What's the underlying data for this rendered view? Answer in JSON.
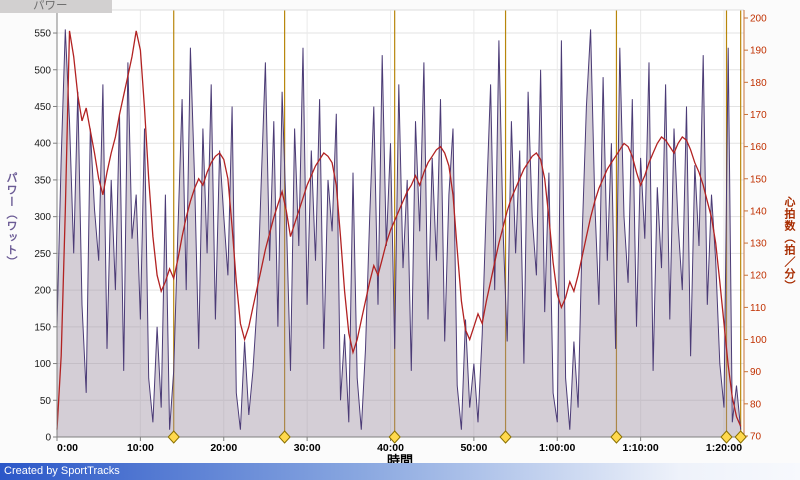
{
  "page": {
    "pane_title": "パワー",
    "credit": "Created by SportTracks"
  },
  "chart_data": {
    "type": "line",
    "title": "パワー",
    "legend_position": "none",
    "grid": true,
    "x_axis": {
      "label": "時間",
      "ticks": [
        "0:00",
        "10:00",
        "20:00",
        "30:00",
        "40:00",
        "50:00",
        "1:00:00",
        "1:10:00",
        "1:20:00"
      ],
      "minutes": [
        0,
        10,
        20,
        30,
        40,
        50,
        60,
        70,
        80
      ]
    },
    "y_left": {
      "label": "パワー（ワット）",
      "color": "#6b5b95",
      "tick_label_color": "#1a1a1a",
      "ticks": [
        0,
        50,
        100,
        150,
        200,
        250,
        300,
        350,
        400,
        450,
        500,
        550
      ],
      "range": [
        0,
        581
      ]
    },
    "y_right": {
      "label": "心拍数（拍／分）",
      "color": "#a82c00",
      "tick_label_color": "#c03000",
      "ticks": [
        70,
        80,
        90,
        100,
        110,
        120,
        130,
        140,
        150,
        160,
        170,
        180,
        190,
        200
      ],
      "range": [
        70,
        202
      ]
    },
    "t0_min": 0,
    "dt_min": 0.5,
    "markers": {
      "line_color": "#b8860b",
      "diamond_fill": "#ffd94d",
      "diamond_stroke": "#8a7000",
      "times_min": [
        14.0,
        27.3,
        40.5,
        53.8,
        67.1,
        80.3,
        82.0
      ]
    },
    "series": [
      {
        "name": "パワー",
        "axis": "left",
        "unit": "ワット",
        "style": "area",
        "color": "#4b3b76",
        "fill": "rgba(152,138,158,0.42)",
        "values": [
          150,
          380,
          555,
          430,
          250,
          470,
          180,
          60,
          420,
          310,
          240,
          480,
          120,
          350,
          200,
          440,
          90,
          510,
          270,
          330,
          160,
          420,
          80,
          20,
          150,
          40,
          330,
          10,
          90,
          280,
          460,
          200,
          530,
          350,
          120,
          420,
          250,
          480,
          160,
          390,
          300,
          220,
          450,
          60,
          10,
          130,
          30,
          90,
          180,
          350,
          510,
          240,
          430,
          150,
          470,
          300,
          90,
          420,
          260,
          530,
          180,
          390,
          240,
          460,
          120,
          350,
          280,
          440,
          50,
          140,
          20,
          360,
          80,
          10,
          120,
          300,
          450,
          180,
          520,
          260,
          400,
          120,
          480,
          230,
          350,
          90,
          430,
          280,
          510,
          160,
          380,
          240,
          460,
          130,
          330,
          420,
          70,
          10,
          160,
          40,
          100,
          20,
          140,
          320,
          480,
          200,
          540,
          280,
          130,
          430,
          250,
          390,
          100,
          470,
          300,
          220,
          500,
          170,
          360,
          60,
          20,
          540,
          80,
          10,
          130,
          40,
          280,
          450,
          555,
          320,
          180,
          490,
          240,
          400,
          120,
          530,
          300,
          210,
          460,
          150,
          380,
          270,
          510,
          90,
          340,
          230,
          480,
          160,
          420,
          290,
          200,
          450,
          110,
          370,
          260,
          520,
          180,
          330,
          240,
          100,
          40,
          530,
          20,
          70,
          10
        ]
      },
      {
        "name": "心拍数",
        "axis": "right",
        "unit": "拍／分",
        "style": "line",
        "color": "#b22222",
        "values": [
          72,
          95,
          140,
          196,
          188,
          176,
          168,
          172,
          165,
          158,
          150,
          145,
          152,
          158,
          163,
          170,
          176,
          182,
          188,
          196,
          190,
          172,
          150,
          132,
          120,
          115,
          118,
          122,
          119,
          125,
          132,
          138,
          143,
          147,
          150,
          148,
          152,
          155,
          157,
          158,
          156,
          150,
          135,
          118,
          105,
          100,
          104,
          110,
          116,
          122,
          128,
          133,
          138,
          142,
          146,
          140,
          132,
          136,
          140,
          144,
          148,
          151,
          154,
          156,
          158,
          157,
          155,
          148,
          132,
          115,
          102,
          96,
          100,
          106,
          112,
          118,
          123,
          120,
          125,
          130,
          134,
          137,
          140,
          143,
          146,
          148,
          151,
          148,
          152,
          155,
          157,
          159,
          160,
          158,
          154,
          145,
          128,
          112,
          103,
          100,
          104,
          108,
          105,
          112,
          118,
          124,
          130,
          135,
          140,
          144,
          147,
          150,
          153,
          155,
          157,
          158,
          156,
          150,
          138,
          124,
          114,
          110,
          113,
          118,
          115,
          120,
          126,
          132,
          138,
          143,
          147,
          150,
          153,
          155,
          157,
          159,
          161,
          160,
          157,
          152,
          148,
          151,
          155,
          158,
          161,
          163,
          162,
          160,
          158,
          161,
          163,
          162,
          159,
          155,
          152,
          148,
          143,
          138,
          130,
          118,
          105,
          92,
          82,
          76,
          73
        ]
      }
    ]
  }
}
